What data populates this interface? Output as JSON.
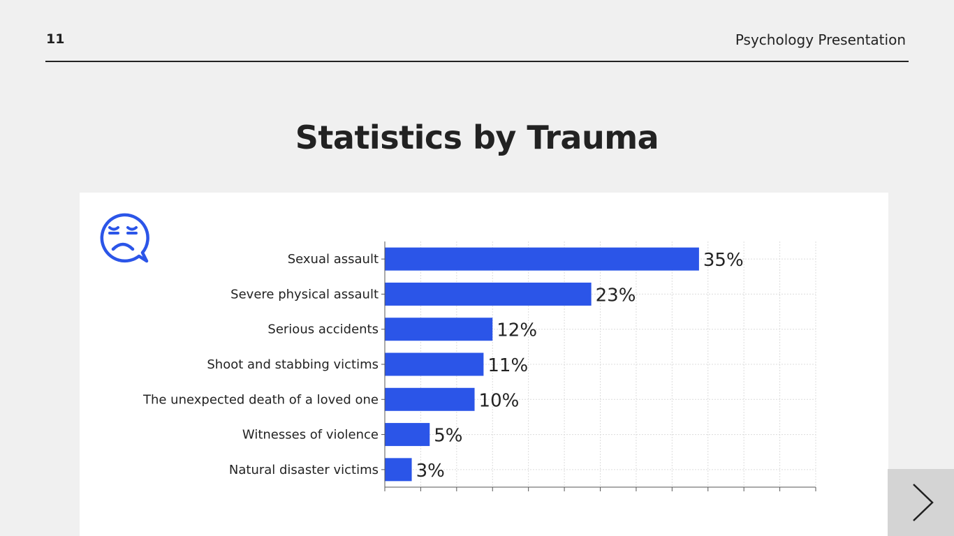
{
  "header": {
    "page_number": "11",
    "deck_title": "Psychology Presentation"
  },
  "slide": {
    "title": "Statistics by Trauma"
  },
  "icons": {
    "card_icon": "sad-face-speech-bubble-icon",
    "next": "chevron-right-icon"
  },
  "colors": {
    "bar": "#2b55e8",
    "accent": "#2b55e8"
  },
  "chart_data": {
    "type": "bar",
    "orientation": "horizontal",
    "title": "",
    "xlabel": "",
    "ylabel": "",
    "categories": [
      "Sexual assault",
      "Severe physical assault",
      "Serious accidents",
      "Shoot and stabbing victims",
      "The unexpected death of a loved one",
      "Witnesses of violence",
      "Natural disaster victims"
    ],
    "values": [
      35,
      23,
      12,
      11,
      10,
      5,
      3
    ],
    "value_labels": [
      "35%",
      "23%",
      "12%",
      "11%",
      "10%",
      "5%",
      "3%"
    ],
    "xlim": [
      0,
      48
    ],
    "x_tick_step": 4,
    "grid": true,
    "legend": "none"
  }
}
